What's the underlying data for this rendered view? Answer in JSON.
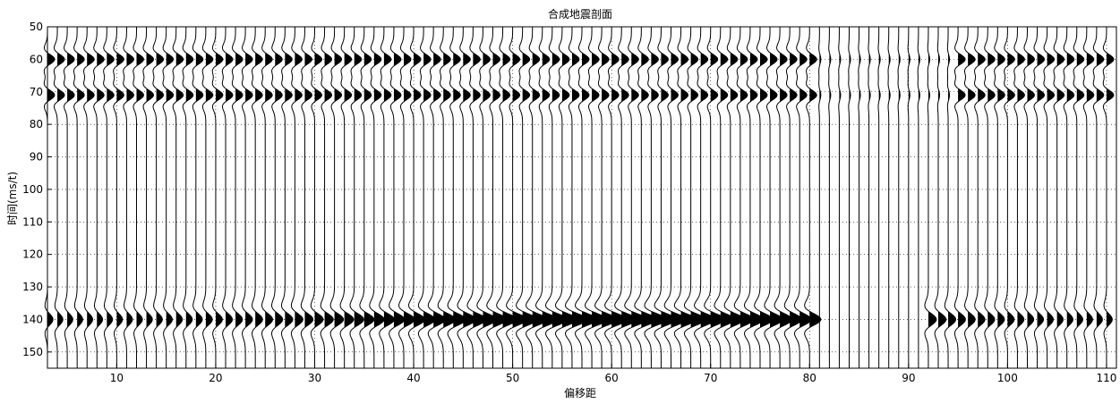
{
  "chart_data": {
    "type": "wiggle",
    "title": "合成地震剖面",
    "xlabel": "偏移距",
    "ylabel": "时间(ms/t)",
    "xlim": [
      3,
      111
    ],
    "ylim": [
      50,
      155
    ],
    "y_reversed": true,
    "grid": true,
    "grid_style": "dotted",
    "xticks": [
      10,
      20,
      30,
      40,
      50,
      60,
      70,
      80,
      90,
      100,
      110
    ],
    "yticks": [
      50,
      60,
      70,
      80,
      90,
      100,
      110,
      120,
      130,
      140,
      150
    ],
    "traces": {
      "first": 3,
      "last": 110,
      "step": 1
    },
    "events": [
      {
        "name": "upper doublet",
        "times": [
          60,
          71
        ],
        "amplitude": 0.8,
        "present_to": 80,
        "resumes_from": 95
      },
      {
        "name": "lower reflection",
        "time": 140,
        "amplitude_min": 0.6,
        "amplitude_max": 1.7,
        "peak_offset": 60,
        "absent_offsets": [
          81,
          82,
          83,
          84,
          85,
          86,
          87,
          88,
          89,
          90,
          91
        ]
      }
    ],
    "colors": {
      "axes": "#000000",
      "trace": "#000000",
      "fill": "#000000",
      "grid": "#000000",
      "background": "#ffffff"
    }
  }
}
